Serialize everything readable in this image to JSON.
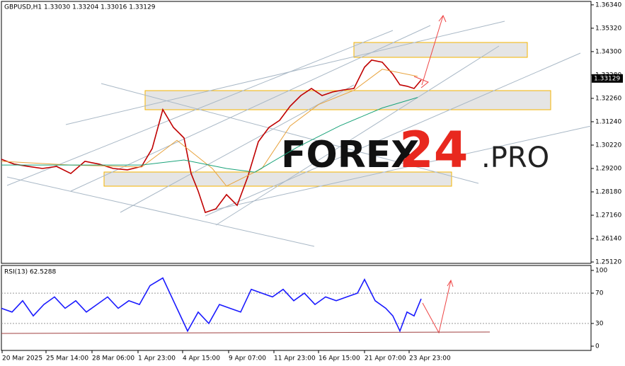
{
  "chart_data": [
    {
      "type": "line",
      "title": "GBPUSD,H1 1.33030 1.33204 1.33016 1.33129",
      "last_price": 1.33129,
      "xlim": [
        0,
        833
      ],
      "ylim": [
        1.2506,
        1.3649
      ],
      "yticks": [
        {
          "value": 1.3634,
          "label": "1.36340"
        },
        {
          "value": 1.3532,
          "label": "1.35320"
        },
        {
          "value": 1.343,
          "label": "1.34300"
        },
        {
          "value": 1.3328,
          "label": "1.33280"
        },
        {
          "value": 1.3226,
          "label": "1.32260"
        },
        {
          "value": 1.3124,
          "label": "1.31240"
        },
        {
          "value": 1.3022,
          "label": "1.30220"
        },
        {
          "value": 1.292,
          "label": "1.29200"
        },
        {
          "value": 1.2818,
          "label": "1.28180"
        },
        {
          "value": 1.2716,
          "label": "1.27160"
        },
        {
          "value": 1.2614,
          "label": "1.26140"
        },
        {
          "value": 1.2512,
          "label": "1.25120"
        }
      ],
      "series": [
        {
          "color": "#c00000",
          "x": [
            0,
            18,
            38,
            58,
            78,
            98,
            118,
            138,
            158,
            178,
            198,
            213,
            228,
            243,
            258,
            268,
            278,
            288,
            303,
            318,
            333,
            348,
            363,
            378,
            393,
            408,
            423,
            438,
            453,
            468,
            483,
            498,
            513,
            523,
            538,
            553,
            563,
            573,
            583,
            593
          ],
          "values": [
            1.296,
            1.2939,
            1.2929,
            1.292,
            1.2929,
            1.2898,
            1.2951,
            1.2939,
            1.292,
            1.2914,
            1.2929,
            1.3007,
            1.3177,
            1.3099,
            1.3053,
            1.2898,
            1.2821,
            1.2728,
            1.2744,
            1.2806,
            1.2759,
            1.2883,
            1.3037,
            1.3099,
            1.313,
            1.3192,
            1.3238,
            1.3269,
            1.3238,
            1.3254,
            1.3263,
            1.3269,
            1.3362,
            1.3393,
            1.3384,
            1.3331,
            1.3285,
            1.3279,
            1.3269,
            1.3306
          ]
        },
        {
          "color": "#e8a33d",
          "x": [
            0,
            98,
            198,
            248,
            298,
            318,
            368,
            408,
            448,
            498,
            538,
            588
          ],
          "values": [
            1.2951,
            1.2935,
            1.2926,
            1.3043,
            1.292,
            1.2843,
            1.292,
            1.3106,
            1.3199,
            1.3261,
            1.3353,
            1.3322
          ]
        },
        {
          "color": "#1aa37a",
          "x": [
            0,
            98,
            198,
            258,
            318,
            358,
            418,
            478,
            538,
            588
          ],
          "values": [
            1.2935,
            1.2935,
            1.2935,
            1.2957,
            1.292,
            1.2904,
            1.3013,
            1.3106,
            1.3184,
            1.323
          ]
        }
      ]
    },
    {
      "type": "line",
      "title": "RSI(13) 62.5288",
      "xlim": [
        0,
        833
      ],
      "ylim": [
        -5.6,
        106.5
      ],
      "yticks": [
        100,
        70,
        30,
        0
      ],
      "grid": true,
      "xticks": [
        {
          "value": 1,
          "label": "20 Mar 2025"
        },
        {
          "value": 63,
          "label": "25 Mar 14:00"
        },
        {
          "value": 128,
          "label": "28 Mar 06:00"
        },
        {
          "value": 193,
          "label": "1 Apr 23:00"
        },
        {
          "value": 256,
          "label": "4 Apr 15:00"
        },
        {
          "value": 321,
          "label": "9 Apr 07:00"
        },
        {
          "value": 385,
          "label": "11 Apr 23:00"
        },
        {
          "value": 448,
          "label": "16 Apr 15:00"
        },
        {
          "value": 513,
          "label": "21 Apr 07:00"
        },
        {
          "value": 576,
          "label": "23 Apr 23:00"
        }
      ],
      "series": [
        {
          "color": "#1a1aff",
          "x": [
            0,
            15,
            30,
            45,
            60,
            75,
            90,
            105,
            120,
            135,
            150,
            165,
            180,
            195,
            210,
            228,
            243,
            258,
            263,
            278,
            293,
            308,
            323,
            338,
            353,
            368,
            383,
            398,
            413,
            428,
            443,
            458,
            473,
            488,
            503,
            513,
            528,
            543,
            553,
            563,
            573,
            583,
            593
          ],
          "values": [
            50,
            45,
            60,
            40,
            55,
            65,
            50,
            60,
            45,
            55,
            65,
            50,
            60,
            55,
            80,
            90,
            60,
            30,
            20,
            45,
            30,
            55,
            50,
            45,
            75,
            70,
            65,
            75,
            60,
            70,
            55,
            65,
            60,
            65,
            70,
            88,
            60,
            50,
            40,
            20,
            45,
            40,
            62.5288
          ]
        }
      ]
    }
  ],
  "watermark": {
    "main": "FOREX",
    "number": "24",
    "suffix": ".PRO"
  }
}
